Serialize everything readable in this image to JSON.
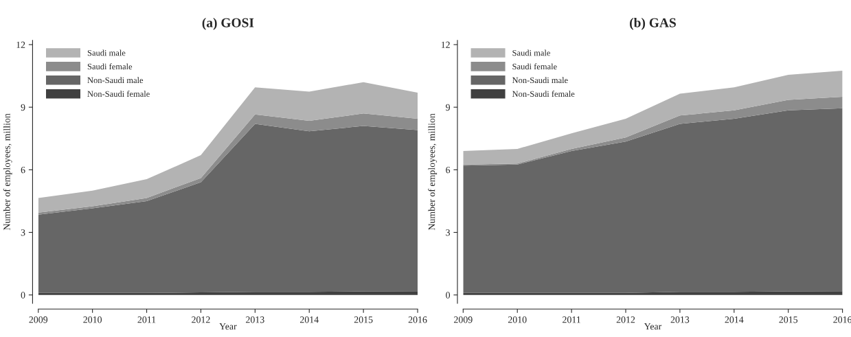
{
  "chart_data": [
    {
      "type": "area",
      "title": "(a) GOSI",
      "xlabel": "Year",
      "ylabel": "Number of employees, million",
      "stacked": true,
      "x": [
        2009,
        2010,
        2011,
        2012,
        2013,
        2014,
        2015,
        2016
      ],
      "xlim": [
        2009,
        2016
      ],
      "xticks": [
        2009,
        2010,
        2011,
        2012,
        2013,
        2014,
        2015,
        2016
      ],
      "ylim": [
        -0.4,
        12.2
      ],
      "yticks": [
        0,
        3,
        6,
        9,
        12
      ],
      "grid": false,
      "legend": "top left",
      "series": [
        {
          "name": "Non-Saudi female",
          "color": "#404040",
          "values": [
            0.1,
            0.1,
            0.1,
            0.12,
            0.15,
            0.15,
            0.17,
            0.18
          ]
        },
        {
          "name": "Non-Saudi male",
          "color": "#666666",
          "values": [
            3.75,
            4.05,
            4.4,
            5.28,
            8.05,
            7.7,
            7.93,
            7.72
          ]
        },
        {
          "name": "Saudi female",
          "color": "#8c8c8c",
          "values": [
            0.1,
            0.1,
            0.15,
            0.2,
            0.45,
            0.5,
            0.6,
            0.55
          ]
        },
        {
          "name": "Saudi male",
          "color": "#b3b3b3",
          "values": [
            0.7,
            0.75,
            0.9,
            1.1,
            1.3,
            1.4,
            1.5,
            1.25
          ]
        }
      ]
    },
    {
      "type": "area",
      "title": "(b) GAS",
      "xlabel": "Year",
      "ylabel": "Number of employees, million",
      "stacked": true,
      "x": [
        2009,
        2010,
        2011,
        2012,
        2013,
        2014,
        2015,
        2016
      ],
      "xlim": [
        2009,
        2016
      ],
      "xticks": [
        2009,
        2010,
        2011,
        2012,
        2013,
        2014,
        2015,
        2016
      ],
      "ylim": [
        -0.4,
        12.2
      ],
      "yticks": [
        0,
        3,
        6,
        9,
        12
      ],
      "grid": false,
      "legend": "top left",
      "series": [
        {
          "name": "Non-Saudi female",
          "color": "#404040",
          "values": [
            0.1,
            0.1,
            0.1,
            0.1,
            0.15,
            0.15,
            0.17,
            0.18
          ]
        },
        {
          "name": "Non-Saudi male",
          "color": "#666666",
          "values": [
            6.1,
            6.15,
            6.8,
            7.25,
            8.05,
            8.3,
            8.68,
            8.77
          ]
        },
        {
          "name": "Saudi female",
          "color": "#8c8c8c",
          "values": [
            0.05,
            0.05,
            0.1,
            0.2,
            0.4,
            0.4,
            0.5,
            0.55
          ]
        },
        {
          "name": "Saudi male",
          "color": "#b3b3b3",
          "values": [
            0.65,
            0.7,
            0.75,
            0.9,
            1.05,
            1.1,
            1.2,
            1.25
          ]
        }
      ]
    }
  ]
}
